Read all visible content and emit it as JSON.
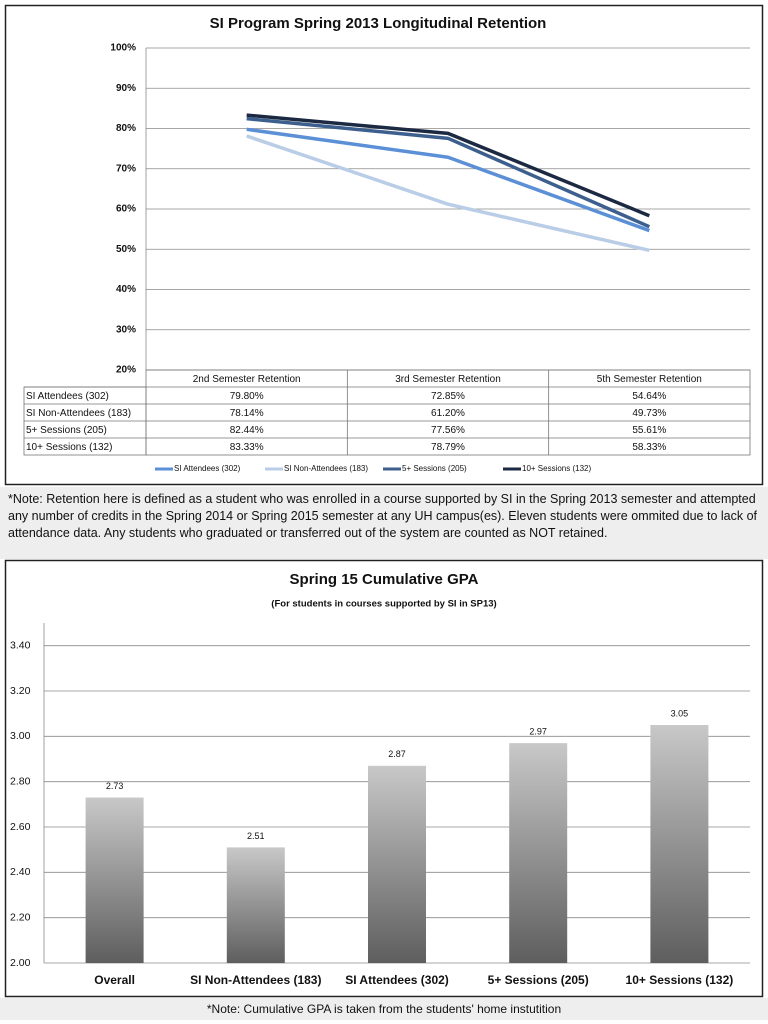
{
  "chart_data": [
    {
      "type": "line",
      "title": "SI Program Spring 2013 Longitudinal Retention",
      "categories": [
        "2nd Semester Retention",
        "3rd Semester Retention",
        "5th Semester Retention"
      ],
      "series": [
        {
          "name": "SI Attendees (302)",
          "color": "#5b8fd6",
          "values": [
            79.8,
            72.85,
            54.64
          ],
          "value_labels": [
            "79.80%",
            "72.85%",
            "54.64%"
          ]
        },
        {
          "name": "SI Non-Attendees (183)",
          "color": "#b9cde6",
          "values": [
            78.14,
            61.2,
            49.73
          ],
          "value_labels": [
            "78.14%",
            "61.20%",
            "49.73%"
          ]
        },
        {
          "name": "5+ Sessions (205)",
          "color": "#3d5f8e",
          "values": [
            82.44,
            77.56,
            55.61
          ],
          "value_labels": [
            "82.44%",
            "77.56%",
            "55.61%"
          ]
        },
        {
          "name": "10+ Sessions (132)",
          "color": "#1b2942",
          "values": [
            83.33,
            78.79,
            58.33
          ],
          "value_labels": [
            "83.33%",
            "78.79%",
            "58.33%"
          ]
        }
      ],
      "ylim": [
        20,
        100
      ],
      "yticks": [
        {
          "value": 20,
          "label": "20%"
        },
        {
          "value": 30,
          "label": "30%"
        },
        {
          "value": 40,
          "label": "40%"
        },
        {
          "value": 50,
          "label": "50%"
        },
        {
          "value": 60,
          "label": "60%"
        },
        {
          "value": 70,
          "label": "70%"
        },
        {
          "value": 80,
          "label": "80%"
        },
        {
          "value": 90,
          "label": "90%"
        },
        {
          "value": 100,
          "label": "100%"
        }
      ],
      "grid": true
    },
    {
      "type": "bar",
      "title": "Spring 15 Cumulative GPA",
      "subtitle": "(For students in courses supported by SI in SP13)",
      "categories": [
        "Overall",
        "SI Non-Attendees (183)",
        "SI Attendees (302)",
        "5+ Sessions (205)",
        "10+ Sessions (132)"
      ],
      "values": [
        2.73,
        2.51,
        2.87,
        2.97,
        3.05
      ],
      "ylim": [
        2,
        3.5
      ],
      "yticks": [
        {
          "value": 2,
          "label": "2.00"
        },
        {
          "value": 2.2,
          "label": "2.20"
        },
        {
          "value": 2.4,
          "label": "2.40"
        },
        {
          "value": 2.6,
          "label": "2.60"
        },
        {
          "value": 2.8,
          "label": "2.80"
        },
        {
          "value": 3,
          "label": "3.00"
        },
        {
          "value": 3.2,
          "label": "3.20"
        },
        {
          "value": 3.4,
          "label": "3.40"
        }
      ],
      "grid": true
    }
  ],
  "notes": [
    "*Note: Retention here is defined as a student who was enrolled in a course supported by SI in the Spring 2013 semester and attempted any number of credits in the Spring 2014 or Spring 2015 semester at any UH campus(es). Eleven students were ommited due to lack of attendance data. Any students who graduated or transferred out of the system are counted as NOT retained.",
    "*Note: Cumulative GPA is taken from the students' home instutition"
  ]
}
